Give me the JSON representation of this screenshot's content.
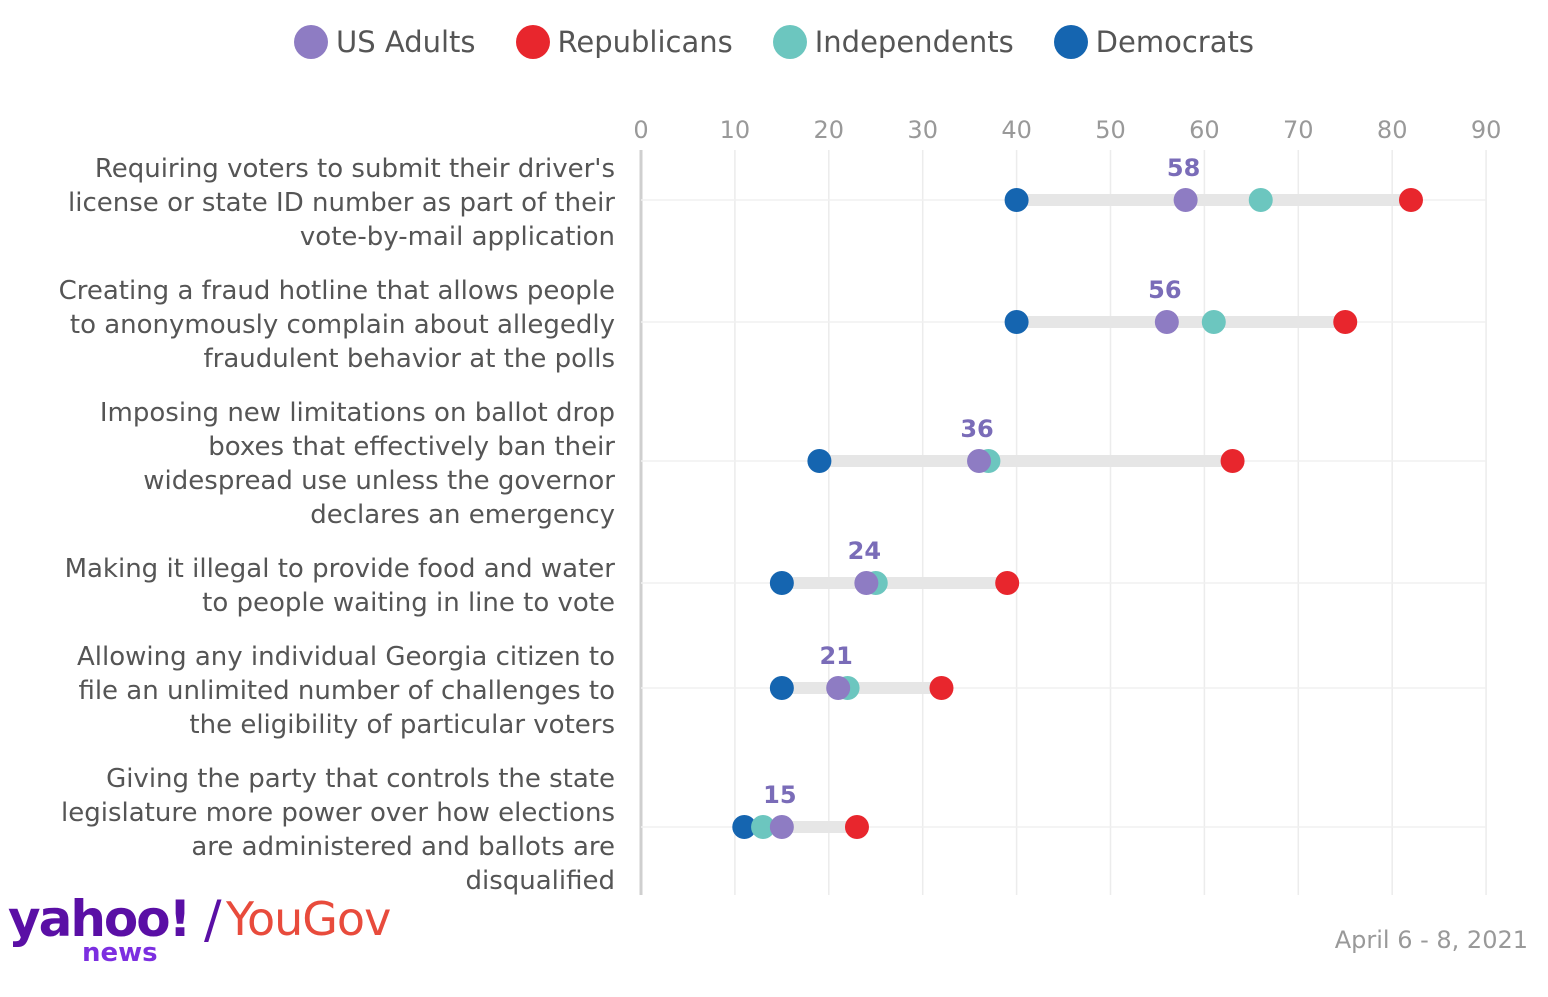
{
  "colors": {
    "us_adults": "#8e7cc3",
    "republicans": "#e8262d",
    "independents": "#6cc6bf",
    "democrats": "#1565b0",
    "range_bar": "#e6e6e6",
    "grid": "#ececec",
    "value_label": "#7a6cb8"
  },
  "legend": [
    {
      "name": "US Adults",
      "color": "#8e7cc3"
    },
    {
      "name": "Republicans",
      "color": "#e8262d"
    },
    {
      "name": "Independents",
      "color": "#6cc6bf"
    },
    {
      "name": "Democrats",
      "color": "#1565b0"
    }
  ],
  "chart_data": {
    "type": "scatter",
    "subtype": "dot-range",
    "title": "",
    "xlabel": "",
    "ylabel": "",
    "xlim": [
      0,
      90
    ],
    "ticks": [
      "0",
      "10",
      "20",
      "30",
      "40",
      "50",
      "60",
      "70",
      "80",
      "90"
    ],
    "grid": true,
    "legend_position": "top",
    "categories": [
      [
        "Requiring voters to submit their driver's",
        "license or state ID number as part of their",
        "vote-by-mail application"
      ],
      [
        "Creating a fraud hotline that allows people",
        "to anonymously complain about allegedly",
        "fraudulent behavior at the polls"
      ],
      [
        "Imposing new limitations on ballot drop",
        "boxes that effectively ban their",
        "widespread use unless the governor",
        "declares an emergency"
      ],
      [
        "Making it illegal to provide food and water",
        "to people waiting in line to vote"
      ],
      [
        "Allowing any individual Georgia citizen to",
        "file an unlimited number of challenges to",
        "the eligibility of particular voters"
      ],
      [
        "Giving the party that controls the state",
        "legislature more power over how elections",
        "are administered and ballots are",
        "disqualified"
      ]
    ],
    "series": [
      {
        "name": "Democrats",
        "key": "democrats",
        "values": [
          40,
          40,
          19,
          15,
          15,
          11
        ]
      },
      {
        "name": "Independents",
        "key": "independents",
        "values": [
          66,
          61,
          37,
          25,
          22,
          13
        ]
      },
      {
        "name": "US Adults",
        "key": "us_adults",
        "values": [
          58,
          56,
          36,
          24,
          21,
          15
        ]
      },
      {
        "name": "Republicans",
        "key": "republicans",
        "values": [
          82,
          75,
          63,
          39,
          32,
          23
        ]
      }
    ],
    "value_labels": [
      "58",
      "56",
      "36",
      "24",
      "21",
      "15"
    ]
  },
  "branding": {
    "yahoo": "yahoo!",
    "slash": "/",
    "yougov": "YouGov",
    "news": "news"
  },
  "date": "April 6 - 8, 2021"
}
